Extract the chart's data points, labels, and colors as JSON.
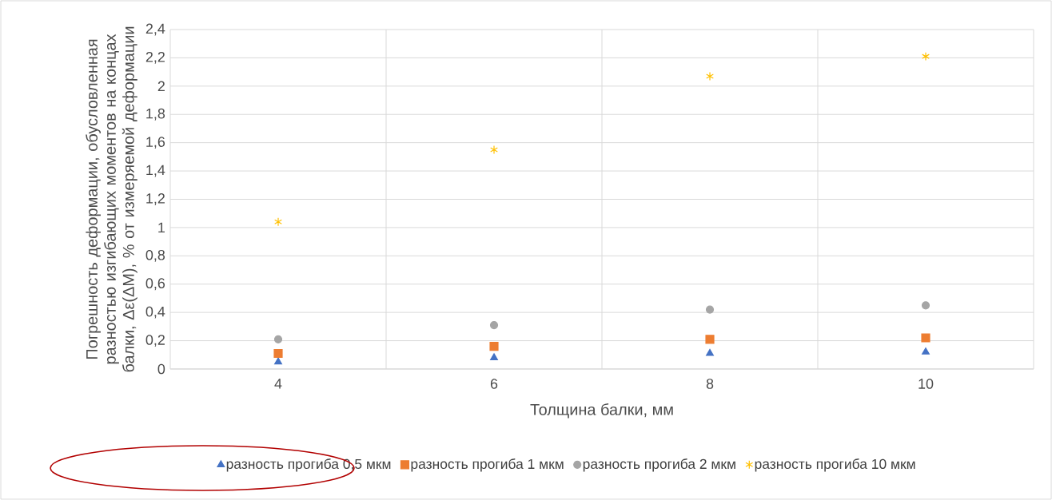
{
  "chart_data": {
    "type": "scatter",
    "xlabel": "Толщина балки, мм",
    "ylabel": "Погрешность деформации, обусловленная разностью изгибающих моментов на концах балки, Δε(ΔM), % от измеряемой деформации",
    "categories": [
      "4",
      "6",
      "8",
      "10"
    ],
    "ylim": [
      0,
      2.4
    ],
    "yticks": [
      0,
      {
        "value": 0.2,
        "label": "0,2"
      },
      {
        "value": 0.4,
        "label": "0,4"
      },
      {
        "value": 0.6,
        "label": "0,6"
      },
      {
        "value": 0.8,
        "label": "0,8"
      },
      1,
      {
        "value": 1.2,
        "label": "1,2"
      },
      {
        "value": 1.4,
        "label": "1,4"
      },
      {
        "value": 1.6,
        "label": "1,6"
      },
      {
        "value": 1.8,
        "label": "1,8"
      },
      2,
      {
        "value": 2.2,
        "label": "2,2"
      },
      {
        "value": 2.4,
        "label": "2,4"
      }
    ],
    "grid": true,
    "legend": "bottom",
    "series": [
      {
        "name": "разность прогиба 0,5 мкм",
        "color": "#4472c4",
        "marker": "triangle",
        "values": [
          0.05,
          0.08,
          0.11,
          0.12
        ]
      },
      {
        "name": "разность прогиба 1 мкм",
        "color": "#ed7d31",
        "marker": "square",
        "values": [
          0.11,
          0.16,
          0.21,
          0.22
        ]
      },
      {
        "name": "разность прогиба 2 мкм",
        "color": "#a5a5a5",
        "marker": "circle",
        "values": [
          0.21,
          0.31,
          0.42,
          0.45
        ]
      },
      {
        "name": "разность прогиба 10 мкм",
        "color": "#ffc000",
        "marker": "cross",
        "values": [
          1.04,
          1.55,
          2.07,
          2.21
        ]
      }
    ]
  }
}
